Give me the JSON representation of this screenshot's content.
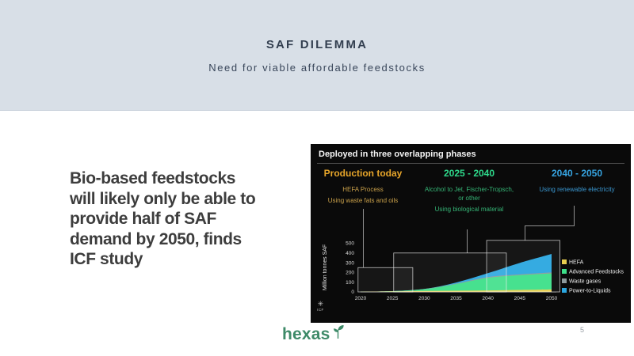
{
  "header": {
    "title": "SAF DILEMMA",
    "subtitle": "Need for viable affordable feedstocks"
  },
  "main": {
    "statement": "Bio-based feedstocks\nwill likely only be able to\nprovide half of SAF\ndemand by 2050, finds\nICF study"
  },
  "chart": {
    "title": "Deployed in three overlapping phases",
    "phases": [
      {
        "title": "Production today",
        "color": "#e8a62a",
        "sub_color": "#c9a04a",
        "lines": [
          "HEFA Process",
          "Using waste fats and oils"
        ]
      },
      {
        "title": "2025 - 2040",
        "color": "#2ed98b",
        "sub_color": "#35b475",
        "lines": [
          "Alcohol to Jet, Fischer-Tropsch, or other",
          "Using biological material"
        ]
      },
      {
        "title": "2040 - 2050",
        "color": "#36a3e0",
        "sub_color": "#3a97d0",
        "lines": [
          "Using renewable electricity"
        ]
      }
    ],
    "source": "ICF"
  },
  "chart_data": {
    "type": "area",
    "stacked": true,
    "title": "Deployed in three overlapping phases",
    "xlabel": "",
    "ylabel": "Million tonnes SAF",
    "x": [
      2020,
      2025,
      2030,
      2035,
      2040,
      2045,
      2050
    ],
    "x_ticks": [
      2020,
      2025,
      2030,
      2035,
      2040,
      2045,
      2050
    ],
    "y_ticks": [
      0,
      100,
      200,
      300,
      400,
      500
    ],
    "xlim": [
      2019.2,
      2051.5
    ],
    "ylim": [
      0,
      540
    ],
    "grid": false,
    "legend_position": "right",
    "series": [
      {
        "name": "HEFA",
        "color": "#e9cf50",
        "values": [
          2,
          6,
          10,
          12,
          15,
          20,
          25
        ]
      },
      {
        "name": "Advanced Feedstocks",
        "color": "#3ee08a",
        "values": [
          0,
          2,
          18,
          68,
          130,
          152,
          165
        ]
      },
      {
        "name": "Waste gases",
        "color": "#8d999c",
        "values": [
          0,
          0,
          2,
          5,
          8,
          8,
          10
        ]
      },
      {
        "name": "Power-to-Liquids",
        "color": "#2ba7e0",
        "values": [
          0,
          0,
          0,
          12,
          40,
          118,
          190
        ]
      }
    ],
    "phase_boxes": [
      {
        "from": 2019.6,
        "to": 2028.2,
        "top": 250
      },
      {
        "from": 2025.2,
        "to": 2042.9,
        "top": 400
      },
      {
        "from": 2039.8,
        "to": 2051.3,
        "top": 530
      }
    ]
  },
  "icons": {
    "icf_star": "✳"
  },
  "colors": {
    "header_bg": "#d8dfe7",
    "header_text": "#333f50",
    "statement_text": "#3d3d3d",
    "chart_bg": "#0a0a0a",
    "logo_green": "#3e8a68"
  },
  "footer": {
    "logo_text": "hexas",
    "page_number": "5"
  }
}
